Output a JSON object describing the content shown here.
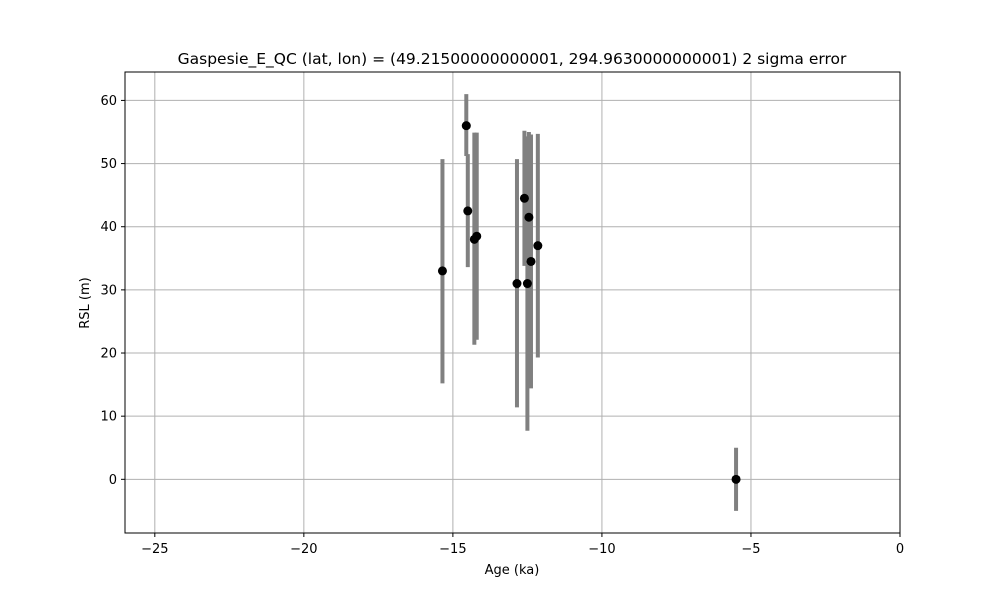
{
  "chart_data": {
    "type": "scatter",
    "title": "Gaspesie_E_QC (lat, lon) = (49.21500000000001, 294.9630000000001)  2 sigma error",
    "xlabel": "Age (ka)",
    "ylabel": "RSL (m)",
    "xlim": [
      -26,
      0
    ],
    "ylim": [
      -8.5,
      64.5
    ],
    "xticks": [
      -25,
      -20,
      -15,
      -10,
      -5,
      0
    ],
    "xtick_labels": [
      "−25",
      "−20",
      "−15",
      "−10",
      "−5",
      "0"
    ],
    "yticks": [
      0,
      10,
      20,
      30,
      40,
      50,
      60
    ],
    "ytick_labels": [
      "0",
      "10",
      "20",
      "30",
      "40",
      "50",
      "60"
    ],
    "grid": true,
    "error_type": "2 sigma",
    "colors": {
      "point": "#000000",
      "errorbar": "#808080",
      "grid": "#b0b0b0",
      "frame": "#000000"
    },
    "points": [
      {
        "x": -15.35,
        "y": 33.0,
        "ylow": 15.2,
        "yhigh": 50.7
      },
      {
        "x": -14.55,
        "y": 56.0,
        "ylow": 51.2,
        "yhigh": 61.0
      },
      {
        "x": -14.5,
        "y": 42.5,
        "ylow": 33.6,
        "yhigh": 51.5
      },
      {
        "x": -14.28,
        "y": 38.0,
        "ylow": 21.3,
        "yhigh": 54.9
      },
      {
        "x": -14.2,
        "y": 38.5,
        "ylow": 22.1,
        "yhigh": 54.9
      },
      {
        "x": -12.85,
        "y": 31.0,
        "ylow": 11.4,
        "yhigh": 50.7
      },
      {
        "x": -12.6,
        "y": 44.5,
        "ylow": 33.8,
        "yhigh": 55.2
      },
      {
        "x": -12.5,
        "y": 31.0,
        "ylow": 7.7,
        "yhigh": 54.3
      },
      {
        "x": -12.45,
        "y": 41.5,
        "ylow": 28.0,
        "yhigh": 55.0
      },
      {
        "x": -12.38,
        "y": 34.5,
        "ylow": 14.4,
        "yhigh": 54.6
      },
      {
        "x": -12.15,
        "y": 37.0,
        "ylow": 19.3,
        "yhigh": 54.7
      },
      {
        "x": -5.5,
        "y": 0.0,
        "ylow": -5.0,
        "yhigh": 5.0
      }
    ]
  }
}
